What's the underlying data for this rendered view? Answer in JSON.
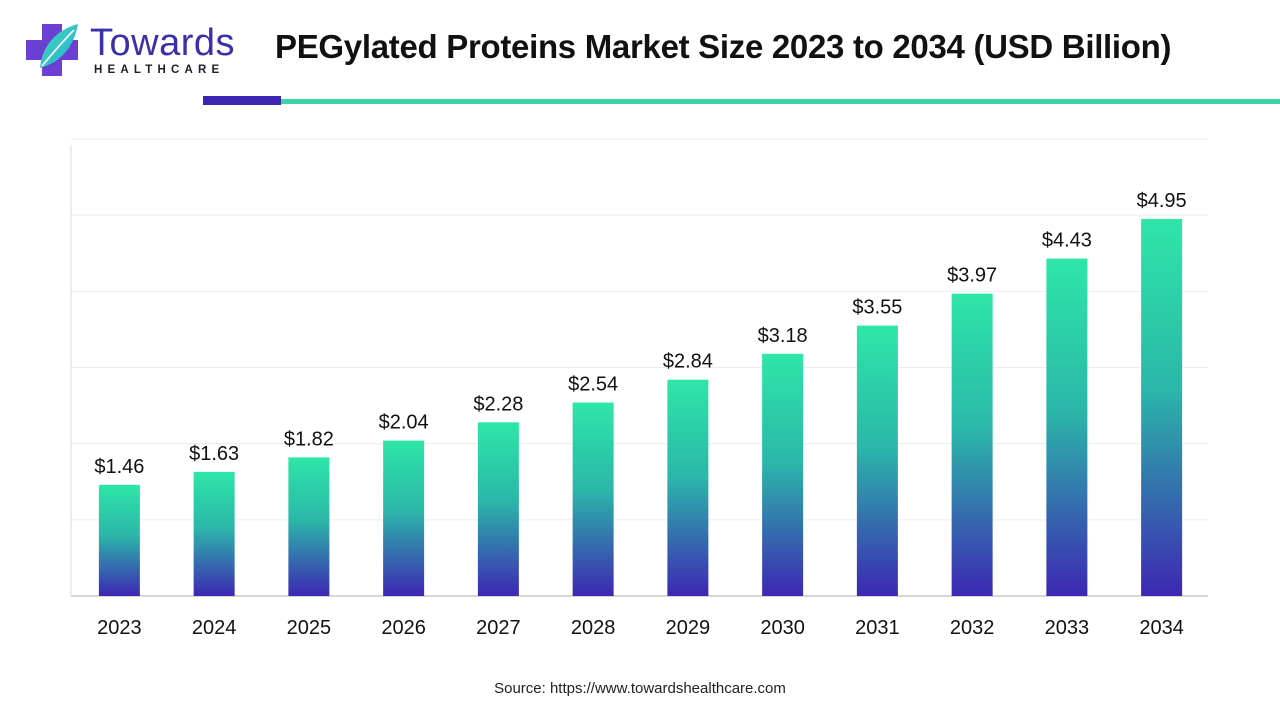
{
  "header": {
    "logo_word": "Towards",
    "logo_sub": "HEALTHCARE",
    "title": "PEGylated Proteins Market Size 2023 to 2034 (USD Billion)"
  },
  "colors": {
    "bar_top": "#2ee6a8",
    "bar_bottom": "#3d27b3",
    "accent_purple": "#3a24b0",
    "accent_teal": "#3fd3a8"
  },
  "chart_data": {
    "type": "bar",
    "categories": [
      "2023",
      "2024",
      "2025",
      "2026",
      "2027",
      "2028",
      "2029",
      "2030",
      "2031",
      "2032",
      "2033",
      "2034"
    ],
    "values": [
      1.46,
      1.63,
      1.82,
      2.04,
      2.28,
      2.54,
      2.84,
      3.18,
      3.55,
      3.97,
      4.43,
      4.95
    ],
    "data_labels": [
      "$1.46",
      "$1.63",
      "$1.82",
      "$2.04",
      "$2.28",
      "$2.54",
      "$2.84",
      "$3.18",
      "$3.55",
      "$3.97",
      "$4.43",
      "$4.95"
    ],
    "title": "PEGylated Proteins Market Size 2023 to 2034 (USD Billion)",
    "xlabel": "",
    "ylabel": "",
    "ylim": [
      0,
      6
    ],
    "grid": true,
    "legend": "none"
  },
  "footer": {
    "source": "Source: https://www.towardshealthcare.com"
  }
}
